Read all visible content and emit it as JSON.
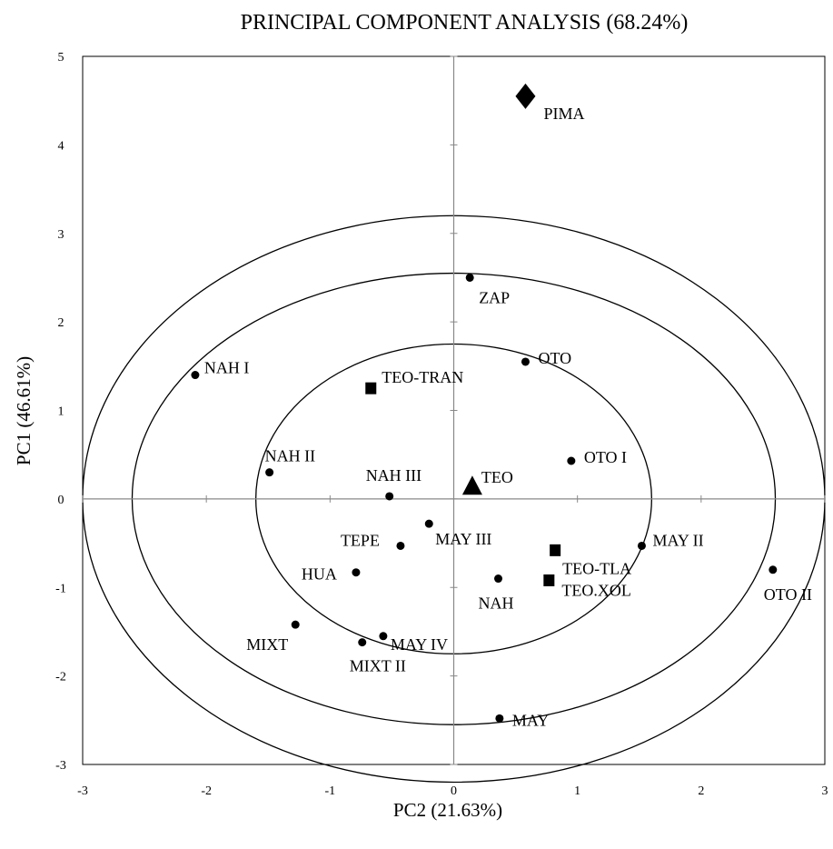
{
  "chart_data": {
    "type": "scatter",
    "title": "PRINCIPAL COMPONENT ANALYSIS (68.24%)",
    "xlabel": "PC2 (21.63%)",
    "ylabel": "PC1 (46.61%)",
    "xlim": [
      -3,
      3
    ],
    "ylim": [
      -3,
      5
    ],
    "x_ticks": [
      -3,
      -2,
      -1,
      0,
      1,
      2,
      3
    ],
    "y_ticks": [
      -3,
      -2,
      -1,
      0,
      1,
      2,
      3,
      4,
      5
    ],
    "grid": false,
    "zero_lines": true,
    "confidence_ellipses": [
      {
        "center": [
          0,
          0
        ],
        "rx": 1.6,
        "ry": 1.75
      },
      {
        "center": [
          0,
          0
        ],
        "rx": 2.6,
        "ry": 2.55
      },
      {
        "center": [
          0,
          0
        ],
        "rx": 3.0,
        "ry": 3.2
      }
    ],
    "points": [
      {
        "label": "PIMA",
        "x": 0.58,
        "y": 4.55,
        "marker": "diamond"
      },
      {
        "label": "ZAP",
        "x": 0.13,
        "y": 2.5,
        "marker": "circle"
      },
      {
        "label": "OTO",
        "x": 0.58,
        "y": 1.55,
        "marker": "circle"
      },
      {
        "label": "NAH I",
        "x": -2.09,
        "y": 1.4,
        "marker": "circle"
      },
      {
        "label": "TEO-TRAN",
        "x": -0.67,
        "y": 1.25,
        "marker": "square"
      },
      {
        "label": "NAH II",
        "x": -1.49,
        "y": 0.3,
        "marker": "circle"
      },
      {
        "label": "OTO I",
        "x": 0.95,
        "y": 0.43,
        "marker": "circle"
      },
      {
        "label": "TEO",
        "x": 0.15,
        "y": 0.12,
        "marker": "triangle"
      },
      {
        "label": "NAH III",
        "x": -0.52,
        "y": 0.03,
        "marker": "circle"
      },
      {
        "label": "MAY III",
        "x": -0.2,
        "y": -0.28,
        "marker": "circle"
      },
      {
        "label": "TEPE",
        "x": -0.43,
        "y": -0.53,
        "marker": "circle"
      },
      {
        "label": "MAY II",
        "x": 1.52,
        "y": -0.53,
        "marker": "circle"
      },
      {
        "label": "TEO-TLA",
        "x": 0.82,
        "y": -0.58,
        "marker": "square"
      },
      {
        "label": "OTO II",
        "x": 2.58,
        "y": -0.8,
        "marker": "circle"
      },
      {
        "label": "HUA",
        "x": -0.79,
        "y": -0.83,
        "marker": "circle"
      },
      {
        "label": "NAH",
        "x": 0.36,
        "y": -0.9,
        "marker": "circle"
      },
      {
        "label": "TEO.XOL",
        "x": 0.77,
        "y": -0.92,
        "marker": "square"
      },
      {
        "label": "MIXT",
        "x": -1.28,
        "y": -1.42,
        "marker": "circle"
      },
      {
        "label": "MAY IV",
        "x": -0.57,
        "y": -1.55,
        "marker": "circle"
      },
      {
        "label": "MIXT II",
        "x": -0.74,
        "y": -1.62,
        "marker": "circle"
      },
      {
        "label": "MAY",
        "x": 0.37,
        "y": -2.48,
        "marker": "circle"
      }
    ]
  }
}
